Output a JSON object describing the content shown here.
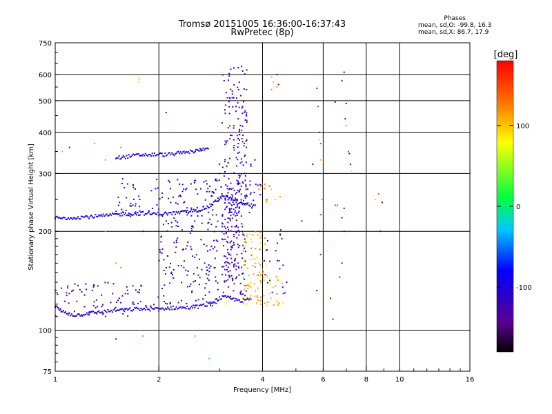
{
  "chart_data": {
    "type": "scatter",
    "title_line1": "Tromsø 20151005 16:36:00-16:37:43",
    "title_line2": "RwPretec (8p)",
    "stats": {
      "heading": "Phases",
      "line_o": "mean, sd,O: -99.8, 16.3",
      "line_x": "mean, sd,X:  86.7, 17.9"
    },
    "xlabel": "Frequency [MHz]",
    "ylabel": "Stationary phase Virtual Height [km]",
    "x_scale": "log",
    "y_scale": "log",
    "xlim": [
      1,
      16
    ],
    "ylim": [
      75,
      750
    ],
    "x_ticks": [
      "1",
      "2",
      "4",
      "6",
      "8",
      "10",
      "16"
    ],
    "y_ticks": [
      "75",
      "100",
      "200",
      "300",
      "400",
      "500",
      "600",
      "750"
    ],
    "grid": true,
    "colorbar": {
      "label": "[deg]",
      "ticks": [
        "100",
        "0",
        "-100"
      ],
      "range": [
        -180,
        180
      ],
      "colormap": "rainbow (black-purple-blue-cyan-green-yellow-red)"
    },
    "traces": [
      {
        "name": "",
        "phase_deg": -110,
        "points": [
          [
            1.0,
            118
          ],
          [
            1.05,
            114
          ],
          [
            1.1,
            112
          ],
          [
            1.15,
            111
          ],
          [
            1.2,
            112
          ],
          [
            1.3,
            113
          ],
          [
            1.4,
            114
          ],
          [
            1.5,
            115
          ],
          [
            1.6,
            115
          ],
          [
            1.7,
            116
          ],
          [
            1.8,
            116
          ],
          [
            1.9,
            116
          ],
          [
            2.0,
            116
          ],
          [
            2.2,
            117
          ],
          [
            2.4,
            117
          ],
          [
            2.6,
            118
          ],
          [
            2.8,
            120
          ],
          [
            3.0,
            125
          ],
          [
            3.1,
            126
          ],
          [
            3.3,
            124
          ],
          [
            3.5,
            123
          ],
          [
            3.7,
            124
          ]
        ]
      },
      {
        "name": "",
        "phase_deg": -95,
        "points": [
          [
            1.0,
            220
          ],
          [
            1.05,
            219
          ],
          [
            1.1,
            220
          ],
          [
            1.2,
            221
          ],
          [
            1.3,
            222
          ],
          [
            1.4,
            223
          ],
          [
            1.5,
            225
          ],
          [
            1.6,
            226
          ],
          [
            1.7,
            226
          ],
          [
            1.8,
            227
          ],
          [
            1.9,
            226
          ],
          [
            2.0,
            226
          ],
          [
            2.2,
            227
          ],
          [
            2.4,
            229
          ],
          [
            2.6,
            232
          ],
          [
            2.8,
            238
          ],
          [
            2.95,
            248
          ],
          [
            3.05,
            255
          ],
          [
            3.2,
            252
          ],
          [
            3.4,
            245
          ],
          [
            3.6,
            241
          ],
          [
            3.8,
            240
          ]
        ]
      },
      {
        "name": "",
        "phase_deg": -100,
        "points": [
          [
            1.5,
            335
          ],
          [
            1.6,
            337
          ],
          [
            1.7,
            340
          ],
          [
            1.8,
            342
          ],
          [
            1.9,
            342
          ],
          [
            2.0,
            343
          ],
          [
            2.1,
            342
          ],
          [
            2.2,
            344
          ],
          [
            2.4,
            348
          ],
          [
            2.6,
            352
          ],
          [
            2.8,
            362
          ]
        ]
      }
    ],
    "bands": [
      {
        "name": "",
        "phase_deg": -115,
        "freq": [
          3.05,
          3.6
        ],
        "height": [
          125,
          640
        ],
        "density": 1.0
      },
      {
        "name": "",
        "phase_deg": -125,
        "freq": [
          3.1,
          3.45
        ],
        "height": [
          140,
          270
        ],
        "density": 1.4
      },
      {
        "name": "",
        "phase_deg": -105,
        "freq": [
          2.0,
          3.0
        ],
        "height": [
          118,
          220
        ],
        "density": 0.7
      },
      {
        "name": "",
        "phase_deg": -110,
        "freq": [
          1.0,
          2.0
        ],
        "height": [
          110,
          140
        ],
        "density": 0.6
      },
      {
        "name": "",
        "phase_deg": -95,
        "freq": [
          1.5,
          3.8
        ],
        "height": [
          222,
          290
        ],
        "density": 0.7
      },
      {
        "name": "",
        "phase_deg": 110,
        "freq": [
          3.5,
          4.1
        ],
        "height": [
          120,
          200
        ],
        "density": 1.3
      },
      {
        "name": "",
        "phase_deg": 105,
        "freq": [
          3.9,
          4.6
        ],
        "height": [
          118,
          150
        ],
        "density": 0.8
      },
      {
        "name": "",
        "phase_deg": 100,
        "freq": [
          2.9,
          3.2
        ],
        "height": [
          118,
          126
        ],
        "density": 0.8
      },
      {
        "name": "",
        "phase_deg": 115,
        "freq": [
          3.9,
          4.6
        ],
        "height": [
          240,
          280
        ],
        "density": 0.5
      },
      {
        "name": "",
        "phase_deg": -110,
        "freq": [
          4.0,
          4.6
        ],
        "height": [
          122,
          205
        ],
        "density": 0.3
      },
      {
        "name": "",
        "phase_deg": -115,
        "freq": [
          3.6,
          3.95
        ],
        "height": [
          240,
          320
        ],
        "density": 0.4
      }
    ],
    "sparse": [
      {
        "name": "",
        "points": [
          [
            1.75,
            590,
            90
          ],
          [
            1.76,
            580,
            95
          ],
          [
            1.75,
            570,
            95
          ],
          [
            2.55,
            350,
            -100
          ],
          [
            2.65,
            355,
            -95
          ],
          [
            1.3,
            370,
            -30
          ],
          [
            1.4,
            330,
            -20
          ],
          [
            1.55,
            360,
            -10
          ],
          [
            1.05,
            350,
            110
          ],
          [
            1.1,
            360,
            -120
          ],
          [
            1.4,
            200,
            110
          ],
          [
            1.8,
            200,
            -110
          ],
          [
            2.1,
            215,
            -100
          ],
          [
            2.1,
            460,
            -110
          ],
          [
            1.5,
            160,
            10
          ],
          [
            1.55,
            155,
            0
          ],
          [
            2.55,
            96,
            110
          ],
          [
            2.8,
            82,
            10
          ],
          [
            1.5,
            94,
            -130
          ],
          [
            1.8,
            96,
            -10
          ],
          [
            3.4,
            630,
            -120
          ],
          [
            3.5,
            615,
            -115
          ],
          [
            3.6,
            620,
            -120
          ],
          [
            3.3,
            510,
            -110
          ],
          [
            3.35,
            480,
            -115
          ],
          [
            3.4,
            440,
            -105
          ],
          [
            3.45,
            420,
            -100
          ],
          [
            3.6,
            430,
            -110
          ],
          [
            3.3,
            380,
            -120
          ],
          [
            3.4,
            370,
            -115
          ],
          [
            3.5,
            375,
            -110
          ],
          [
            3.55,
            300,
            -100
          ],
          [
            3.7,
            320,
            -90
          ],
          [
            3.8,
            330,
            -95
          ],
          [
            3.95,
            275,
            150
          ],
          [
            4.05,
            270,
            140
          ],
          [
            4.25,
            590,
            110
          ],
          [
            4.3,
            570,
            100
          ],
          [
            4.4,
            550,
            115
          ],
          [
            4.25,
            540,
            120
          ],
          [
            4.45,
            560,
            -110
          ],
          [
            4.4,
            600,
            -120
          ],
          [
            4.35,
            250,
            100
          ],
          [
            4.5,
            255,
            110
          ],
          [
            4.1,
            175,
            -100
          ],
          [
            4.5,
            195,
            -90
          ],
          [
            4.55,
            190,
            -85
          ],
          [
            4.65,
            130,
            -70
          ],
          [
            4.7,
            140,
            -80
          ],
          [
            5.2,
            215,
            -120
          ],
          [
            5.6,
            320,
            -100
          ],
          [
            5.75,
            545,
            -60
          ],
          [
            5.8,
            480,
            -50
          ],
          [
            5.85,
            400,
            -120
          ],
          [
            5.85,
            380,
            90
          ],
          [
            5.9,
            370,
            160
          ],
          [
            5.9,
            330,
            110
          ],
          [
            5.95,
            300,
            -40
          ],
          [
            5.95,
            250,
            120
          ],
          [
            5.9,
            225,
            150
          ],
          [
            5.85,
            200,
            -110
          ],
          [
            5.9,
            170,
            -60
          ],
          [
            5.75,
            132,
            -110
          ],
          [
            6.3,
            125,
            -110
          ],
          [
            6.4,
            108,
            -120
          ],
          [
            6.5,
            495,
            -120
          ],
          [
            6.9,
            610,
            -120
          ],
          [
            6.8,
            575,
            -110
          ],
          [
            7.0,
            500,
            150
          ],
          [
            7.0,
            490,
            -110
          ],
          [
            6.95,
            440,
            -90
          ],
          [
            7.0,
            420,
            120
          ],
          [
            7.1,
            350,
            160
          ],
          [
            7.15,
            345,
            -100
          ],
          [
            7.2,
            320,
            -100
          ],
          [
            7.25,
            305,
            90
          ],
          [
            6.6,
            240,
            150
          ],
          [
            6.9,
            235,
            -110
          ],
          [
            6.8,
            220,
            -100
          ],
          [
            6.9,
            200,
            -120
          ],
          [
            6.5,
            240,
            175
          ],
          [
            6.7,
            145,
            -60
          ],
          [
            6.8,
            160,
            -110
          ],
          [
            8.7,
            260,
            140
          ],
          [
            8.9,
            245,
            -110
          ],
          [
            8.8,
            200,
            -110
          ],
          [
            8.5,
            250,
            100
          ],
          [
            2.95,
            285,
            -100
          ],
          [
            3.0,
            300,
            -105
          ],
          [
            3.15,
            315,
            150
          ],
          [
            3.25,
            330,
            80
          ],
          [
            3.0,
            320,
            -120
          ],
          [
            3.05,
            260,
            -95
          ]
        ]
      }
    ]
  }
}
